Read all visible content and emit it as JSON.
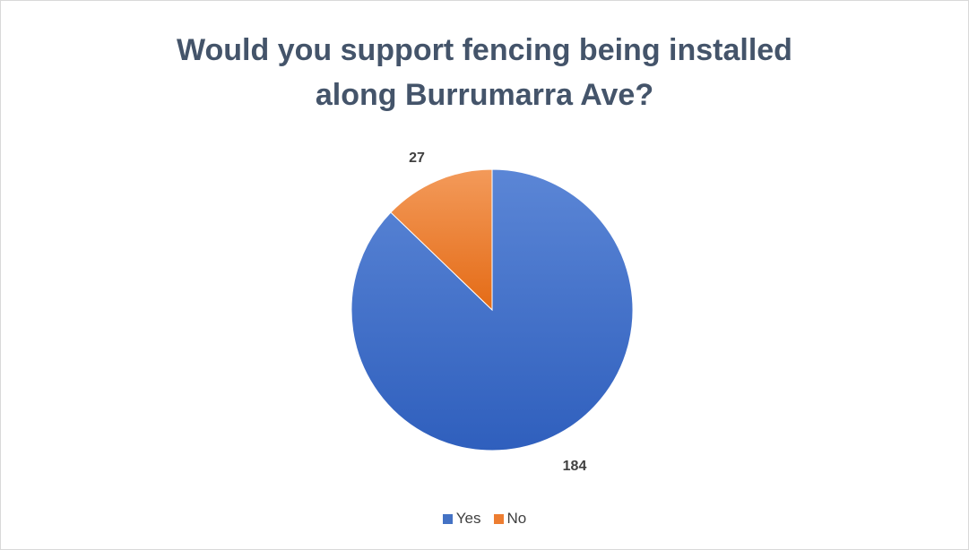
{
  "chart_data": {
    "type": "pie",
    "title": "Would you support fencing being installed along Burrumarra Ave?",
    "title_lines": [
      "Would you support fencing being installed",
      "along Burrumarra Ave?"
    ],
    "slices": [
      {
        "name": "Yes",
        "value": 184,
        "color": "#4472c4"
      },
      {
        "name": "No",
        "value": 27,
        "color": "#ed7d31"
      }
    ],
    "data_labels": true,
    "legend": "bottom",
    "start_angle_deg": 0,
    "direction": "clockwise"
  }
}
